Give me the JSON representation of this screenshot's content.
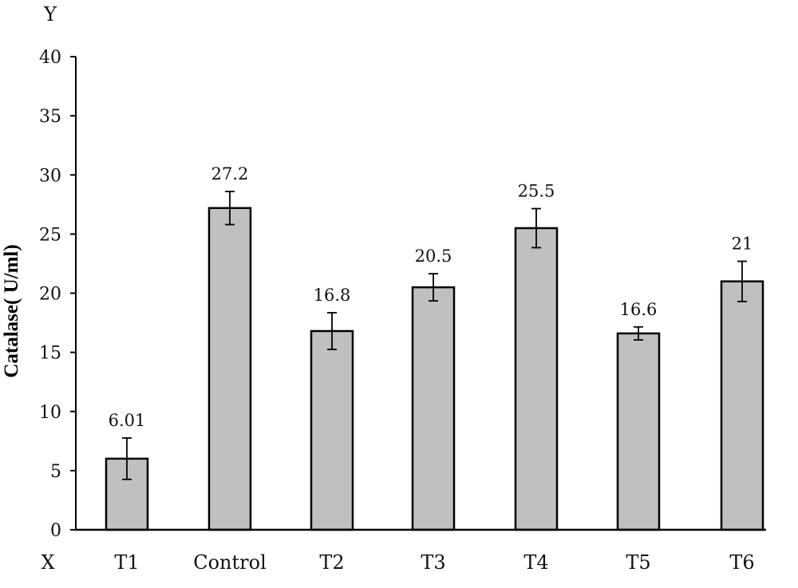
{
  "chart_data": {
    "type": "bar",
    "title": "",
    "xlabel": "X",
    "ylabel": "Catalase( U/ml)",
    "y_axis_letter": "Y",
    "ylim": [
      0,
      40
    ],
    "yticks": [
      0,
      5,
      10,
      15,
      20,
      25,
      30,
      35,
      40
    ],
    "grid": false,
    "legend": "none",
    "categories": [
      "T1",
      "Control",
      "T2",
      "T3",
      "T4",
      "T5",
      "T6"
    ],
    "values": [
      6.01,
      27.2,
      16.8,
      20.5,
      25.5,
      16.6,
      21
    ],
    "value_labels": [
      "6.01",
      "27.2",
      "16.8",
      "20.5",
      "25.5",
      "16.6",
      "21"
    ],
    "error": [
      1.75,
      1.4,
      1.55,
      1.15,
      1.65,
      0.55,
      1.7
    ],
    "bar_color": "#c0c0c0",
    "bar_edge_color": "#000000"
  }
}
